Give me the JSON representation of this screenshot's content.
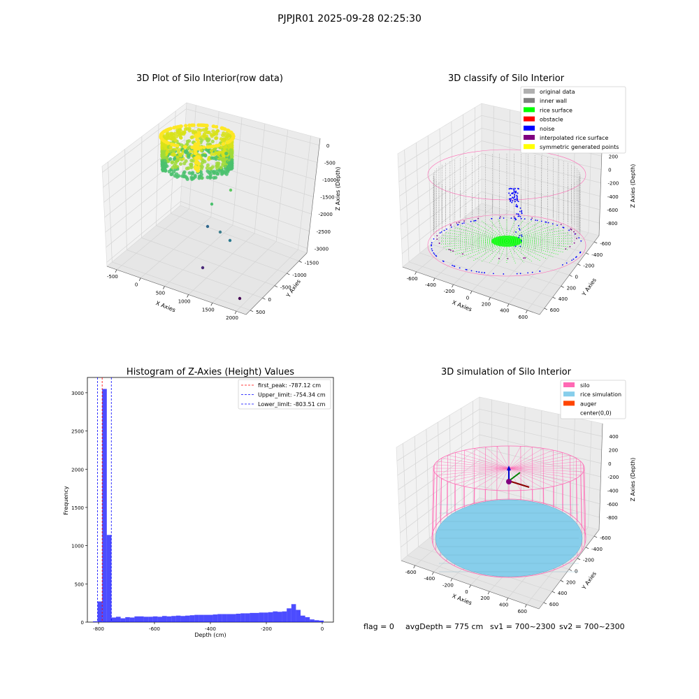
{
  "suptitle": "PJPJR01 2025-09-28 02:25:30",
  "footer": {
    "flag": "flag = 0",
    "avg_depth": "avgDepth = 775 cm",
    "sv1": "sv1 = 700~2300",
    "sv2": "sv2 = 700~2300"
  },
  "colors": {
    "original": "#b0b0b0",
    "inner_wall": "#808080",
    "rice_surface": "#00ff00",
    "obstacle": "#ff0000",
    "noise": "#0000ff",
    "interpolated": "#800080",
    "symmetric": "#ffff00",
    "silo": "#ff69b4",
    "rice_sim": "#87ceeb",
    "auger": "#ff4500",
    "hist": "#0000ff",
    "first_peak_line": "#ff0000",
    "limit_line": "#0000ff"
  },
  "panels": {
    "p1": {
      "title": "3D Plot of Silo Interior(row data)",
      "xlabel": "X Axies",
      "ylabel": "Y Axies",
      "zlabel": "Z Axies (Depth)",
      "xticks": [
        "-500",
        "0",
        "500",
        "1000",
        "1500",
        "2000"
      ],
      "yticks": [
        "500",
        "0",
        "-500",
        "-1000",
        "-1500"
      ],
      "zticks": [
        "0",
        "-500",
        "-1000",
        "-1500",
        "-2000",
        "-2500",
        "-3000"
      ]
    },
    "p2": {
      "title": "3D classify of Silo Interior",
      "xlabel": "X Axies",
      "ylabel": "Y Axies",
      "zlabel": "Z Axies (Depth)",
      "xticks": [
        "-600",
        "-400",
        "-200",
        "0",
        "200",
        "400",
        "600"
      ],
      "yticks": [
        "600",
        "400",
        "200",
        "0",
        "-200",
        "-400",
        "-600"
      ],
      "zticks": [
        "400",
        "200",
        "0",
        "-200",
        "-400",
        "-600",
        "-800"
      ],
      "legend": [
        {
          "label": "original data",
          "color_key": "original"
        },
        {
          "label": "inner wall",
          "color_key": "inner_wall"
        },
        {
          "label": "rice surface",
          "color_key": "rice_surface"
        },
        {
          "label": "obstacle",
          "color_key": "obstacle"
        },
        {
          "label": "noise",
          "color_key": "noise"
        },
        {
          "label": "interpolated rice surface",
          "color_key": "interpolated"
        },
        {
          "label": "symmetric generated points",
          "color_key": "symmetric"
        }
      ]
    },
    "p4": {
      "title": "3D simulation of Silo Interior",
      "xlabel": "X Axies",
      "ylabel": "Y Axies",
      "zlabel": "Z Axies (Depth)",
      "xticks": [
        "-600",
        "-400",
        "-200",
        "0",
        "200",
        "400",
        "600"
      ],
      "yticks": [
        "600",
        "400",
        "200",
        "0",
        "-200",
        "-400",
        "-600"
      ],
      "zticks": [
        "400",
        "200",
        "0",
        "-200",
        "-400",
        "-600",
        "-800"
      ],
      "legend": [
        {
          "label": "silo",
          "color_key": "silo"
        },
        {
          "label": "rice simulation",
          "color_key": "rice_sim"
        },
        {
          "label": "auger",
          "color_key": "auger"
        },
        {
          "label": "center(0,0)",
          "color_key": ""
        }
      ]
    }
  },
  "chart_data": [
    {
      "type": "scatter",
      "title": "3D Plot of Silo Interior(row data)",
      "xlabel": "X Axies",
      "ylabel": "Y Axies",
      "zlabel": "Z Axies (Depth)",
      "xlim": [
        -600,
        2100
      ],
      "ylim": [
        -1600,
        700
      ],
      "zlim": [
        -3100,
        100
      ]
    },
    {
      "type": "scatter",
      "title": "3D classify of Silo Interior",
      "xlabel": "X Axies",
      "ylabel": "Y Axies",
      "zlabel": "Z Axies (Depth)",
      "xlim": [
        -700,
        700
      ],
      "ylim": [
        -700,
        700
      ],
      "zlim": [
        -900,
        400
      ]
    },
    {
      "type": "bar",
      "title": "Histogram of Z-Axies (Height) Values",
      "xlabel": "Depth (cm)",
      "ylabel": "Frequency",
      "xlim": [
        -840,
        40
      ],
      "ylim": [
        0,
        3200
      ],
      "xticks": [
        -800,
        -600,
        -400,
        -200,
        0
      ],
      "yticks": [
        0,
        500,
        1000,
        1500,
        2000,
        2500,
        3000
      ],
      "bin_width": 16.5,
      "bin_start": -820,
      "values": [
        10,
        270,
        3050,
        1140,
        60,
        70,
        50,
        65,
        60,
        75,
        75,
        70,
        70,
        75,
        70,
        80,
        75,
        80,
        85,
        80,
        85,
        90,
        95,
        95,
        95,
        95,
        100,
        105,
        105,
        105,
        105,
        110,
        115,
        115,
        120,
        120,
        125,
        125,
        130,
        140,
        135,
        140,
        180,
        235,
        160,
        85,
        65,
        35,
        25,
        20
      ],
      "lines": [
        {
          "label": "first_peak: -787.12 cm",
          "x": -787.12,
          "color_key": "first_peak_line"
        },
        {
          "label": "Upper_limit: -754.34 cm",
          "x": -754.34,
          "color_key": "limit_line"
        },
        {
          "label": "Lower_limit: -803.51 cm",
          "x": -803.51,
          "color_key": "limit_line"
        }
      ],
      "legend_position": "top-right"
    },
    {
      "type": "scatter",
      "title": "3D simulation of Silo Interior",
      "xlabel": "X Axies",
      "ylabel": "Y Axies",
      "zlabel": "Z Axies (Depth)",
      "xlim": [
        -700,
        700
      ],
      "ylim": [
        -700,
        700
      ],
      "zlim": [
        -900,
        400
      ]
    }
  ]
}
